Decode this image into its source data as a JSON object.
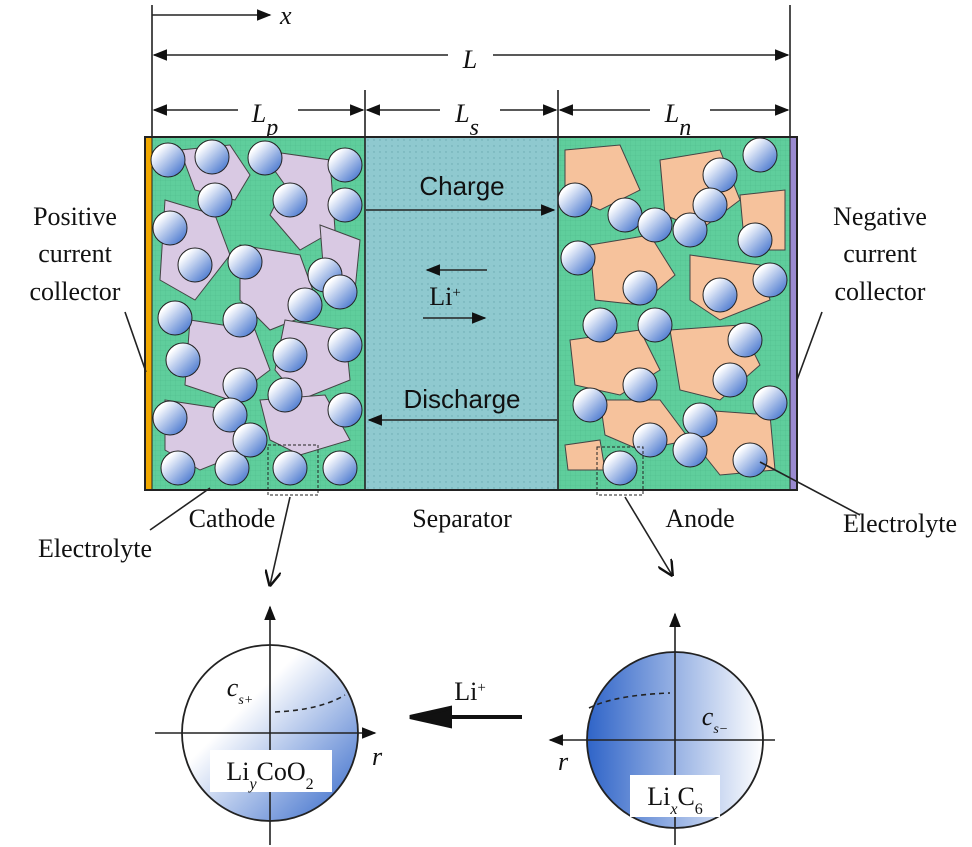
{
  "dimensions": {
    "x": "x",
    "total": "L",
    "cathode": {
      "base": "L",
      "sub": "p"
    },
    "separator": {
      "base": "L",
      "sub": "s"
    },
    "anode": {
      "base": "L",
      "sub": "n"
    }
  },
  "labels": {
    "positive_collector": [
      "Positive",
      "current",
      "collector"
    ],
    "negative_collector": [
      "Negative",
      "current",
      "collector"
    ],
    "electrolyte_left": "Electrolyte",
    "electrolyte_right": "Electrolyte",
    "cathode": "Cathode",
    "separator": "Separator",
    "anode": "Anode"
  },
  "cell": {
    "charge": "Charge",
    "ion": {
      "base": "Li",
      "sup": "+"
    },
    "discharge": "Discharge"
  },
  "particles": {
    "cathode": {
      "concentration": {
        "base": "c",
        "sub": "s+"
      },
      "material": [
        "Li",
        "y",
        "CoO",
        "2"
      ],
      "axis": "r"
    },
    "anode": {
      "concentration": {
        "base": "c",
        "sub": "s−"
      },
      "material": [
        "Li",
        "x",
        "C",
        "6"
      ],
      "axis": "r"
    },
    "transfer": {
      "base": "Li",
      "sup": "+"
    }
  }
}
